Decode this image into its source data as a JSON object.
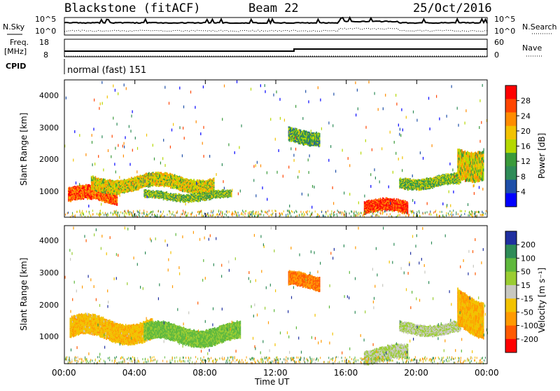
{
  "header": {
    "station": "Blackstone (fitACF)",
    "beam": "Beam 22",
    "date": "25/Oct/2016"
  },
  "panels": {
    "nsky": {
      "label_left": "N.Sky",
      "label_right": "N.Search",
      "ytick_top": "10^5",
      "ytick_bottom": "10^0"
    },
    "freq": {
      "label_top": "Freq.",
      "label_unit": "[MHz]",
      "label_right": "Nave",
      "left_ticks": [
        "18",
        "8"
      ],
      "right_ticks": [
        "60",
        "0"
      ]
    },
    "cpid": {
      "label": "CPID",
      "mode_text": "normal (fast) 151"
    }
  },
  "power_panel": {
    "ylabel": "Slant Range [km]",
    "yticks": [
      "4000",
      "3000",
      "2000",
      "1000"
    ],
    "colorbar_label": "Power [dB]",
    "colorbar_ticks": [
      "28",
      "24",
      "20",
      "16",
      "12",
      "8",
      "4"
    ],
    "colors": [
      "#ff0000",
      "#ff4500",
      "#ff8c00",
      "#f2c200",
      "#b5d800",
      "#3a9a3a",
      "#2e8b57",
      "#1e4fa8",
      "#0000ff"
    ]
  },
  "velocity_panel": {
    "ylabel": "Slant Range [km]",
    "yticks": [
      "4000",
      "3000",
      "2000",
      "1000"
    ],
    "colorbar_label": "Velocity [m s⁻¹]",
    "colorbar_ticks": [
      "200",
      "100",
      "50",
      "15",
      "-15",
      "-50",
      "-100",
      "-200"
    ],
    "colors": [
      "#1f2fa0",
      "#2e8b57",
      "#5fb83c",
      "#9acd32",
      "#c8c8c0",
      "#f2c200",
      "#ff9a00",
      "#ff5a00",
      "#ff0000"
    ]
  },
  "xaxis": {
    "label": "Time UT",
    "ticks": [
      "00:00",
      "04:00",
      "08:00",
      "12:00",
      "16:00",
      "20:00",
      "00:00"
    ]
  },
  "chart_data": {
    "type": "heatmap",
    "x_range_hours": [
      0,
      24
    ],
    "y_range_km": [
      180,
      4500
    ],
    "power_blobs": [
      {
        "t0": 0.2,
        "t1": 3.0,
        "r0": 600,
        "r1": 1100,
        "db": 26
      },
      {
        "t0": 1.5,
        "t1": 8.5,
        "r0": 1000,
        "r1": 1500,
        "db": 18
      },
      {
        "t0": 4.5,
        "t1": 9.5,
        "r0": 700,
        "r1": 1000,
        "db": 14
      },
      {
        "t0": 17.0,
        "t1": 19.5,
        "r0": 250,
        "r1": 700,
        "db": 28
      },
      {
        "t0": 19.0,
        "t1": 22.5,
        "r0": 1100,
        "r1": 1500,
        "db": 14
      },
      {
        "t0": 12.7,
        "t1": 14.5,
        "r0": 2500,
        "r1": 3000,
        "db": 12
      },
      {
        "t0": 22.3,
        "t1": 23.8,
        "r0": 1500,
        "r1": 2500,
        "db": 18
      }
    ],
    "velocity_blobs": [
      {
        "t0": 0.3,
        "t1": 5.0,
        "r0": 900,
        "r1": 1600,
        "v": -60
      },
      {
        "t0": 4.5,
        "t1": 10.0,
        "r0": 800,
        "r1": 1400,
        "v": 40
      },
      {
        "t0": 17.0,
        "t1": 19.5,
        "r0": 200,
        "r1": 700,
        "v": 0
      },
      {
        "t0": 19.0,
        "t1": 22.5,
        "r0": 1100,
        "r1": 1500,
        "v": 0
      },
      {
        "t0": 12.7,
        "t1": 14.5,
        "r0": 2500,
        "r1": 3000,
        "v": -150
      },
      {
        "t0": 22.3,
        "t1": 23.8,
        "r0": 1200,
        "r1": 2400,
        "v": -70
      }
    ]
  }
}
